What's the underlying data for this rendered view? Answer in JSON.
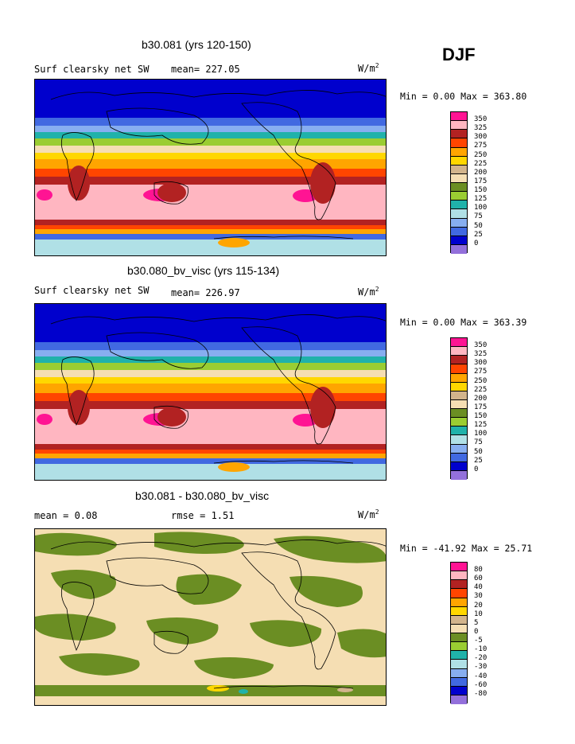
{
  "season": "DJF",
  "panels": [
    {
      "title": "b30.081 (yrs 120-150)",
      "left_label": "Surf clearsky net SW",
      "mean_text": "mean= 227.05",
      "units": "W/m",
      "units_sup": "2",
      "minmax": "Min =   0.00 Max = 363.80",
      "colorbar_labels": [
        "350",
        "325",
        "300",
        "275",
        "250",
        "225",
        "200",
        "175",
        "150",
        "125",
        "100",
        "75",
        "50",
        "25",
        "0"
      ]
    },
    {
      "title": "b30.080_bv_visc (yrs 115-134)",
      "left_label": "Surf clearsky net SW",
      "mean_text": "mean= 226.97",
      "units": "W/m",
      "units_sup": "2",
      "minmax": "Min =   0.00 Max = 363.39",
      "colorbar_labels": [
        "350",
        "325",
        "300",
        "275",
        "250",
        "225",
        "200",
        "175",
        "150",
        "125",
        "100",
        "75",
        "50",
        "25",
        "0"
      ]
    },
    {
      "title": "b30.081 - b30.080_bv_visc",
      "left_label": "mean =    0.08",
      "mean_text": "rmse =    1.51",
      "units": "W/m",
      "units_sup": "2",
      "minmax": "Min = -41.92 Max =  25.71",
      "colorbar_labels": [
        "80",
        "60",
        "40",
        "30",
        "20",
        "10",
        "5",
        "0",
        "-5",
        "-10",
        "-20",
        "-30",
        "-40",
        "-60",
        "-80"
      ]
    }
  ],
  "colors": {
    "palette": [
      "#9370db",
      "#0000cd",
      "#4169e1",
      "#87aef0",
      "#b0e0e6",
      "#20b2aa",
      "#9acd32",
      "#6b8e23",
      "#f5deb3",
      "#d2b48c",
      "#ffd700",
      "#ffa500",
      "#ff4500",
      "#b22222",
      "#ffb6c1",
      "#ff1493"
    ]
  },
  "chart_data": [
    {
      "type": "heatmap",
      "title": "b30.081 (yrs 120-150)",
      "variable": "Surf clearsky net SW",
      "units": "W/m2",
      "mean": 227.05,
      "min": 0.0,
      "max": 363.8,
      "contour_levels": [
        0,
        25,
        50,
        75,
        100,
        125,
        150,
        175,
        200,
        225,
        250,
        275,
        300,
        325,
        350
      ]
    },
    {
      "type": "heatmap",
      "title": "b30.080_bv_visc (yrs 115-134)",
      "variable": "Surf clearsky net SW",
      "units": "W/m2",
      "mean": 226.97,
      "min": 0.0,
      "max": 363.39,
      "contour_levels": [
        0,
        25,
        50,
        75,
        100,
        125,
        150,
        175,
        200,
        225,
        250,
        275,
        300,
        325,
        350
      ]
    },
    {
      "type": "heatmap",
      "title": "b30.081 - b30.080_bv_visc",
      "units": "W/m2",
      "mean": 0.08,
      "rmse": 1.51,
      "min": -41.92,
      "max": 25.71,
      "contour_levels": [
        -80,
        -60,
        -40,
        -30,
        -20,
        -10,
        -5,
        0,
        5,
        10,
        20,
        30,
        40,
        60,
        80
      ]
    }
  ]
}
